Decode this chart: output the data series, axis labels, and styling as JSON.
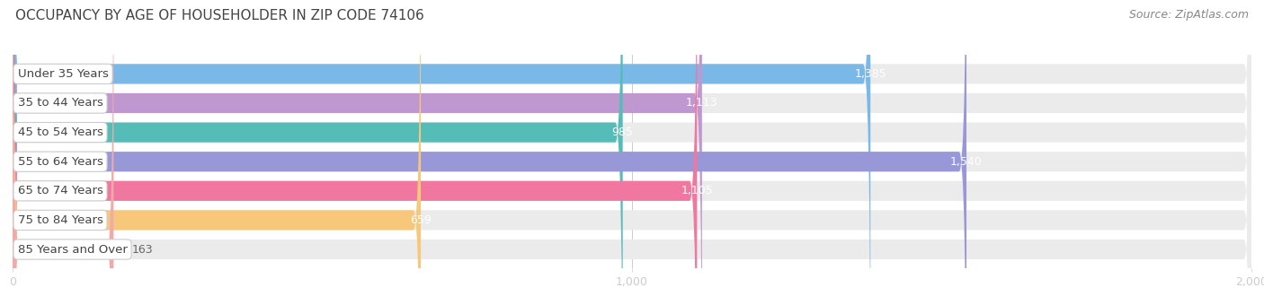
{
  "title": "OCCUPANCY BY AGE OF HOUSEHOLDER IN ZIP CODE 74106",
  "source": "Source: ZipAtlas.com",
  "categories": [
    "Under 35 Years",
    "35 to 44 Years",
    "45 to 54 Years",
    "55 to 64 Years",
    "65 to 74 Years",
    "75 to 84 Years",
    "85 Years and Over"
  ],
  "values": [
    1385,
    1113,
    985,
    1540,
    1105,
    659,
    163
  ],
  "bar_colors": [
    "#7ab8e8",
    "#c098d0",
    "#55bcb8",
    "#9898d8",
    "#f078a0",
    "#f8c87a",
    "#f0aaaa"
  ],
  "bar_bg_color": "#ebebeb",
  "background_color": "#ffffff",
  "xlim": [
    0,
    2000
  ],
  "xticks": [
    0,
    1000,
    2000
  ],
  "title_fontsize": 11,
  "label_fontsize": 9.5,
  "value_fontsize": 9,
  "source_fontsize": 9,
  "bar_height": 0.68,
  "title_color": "#444444",
  "source_color": "#888888"
}
